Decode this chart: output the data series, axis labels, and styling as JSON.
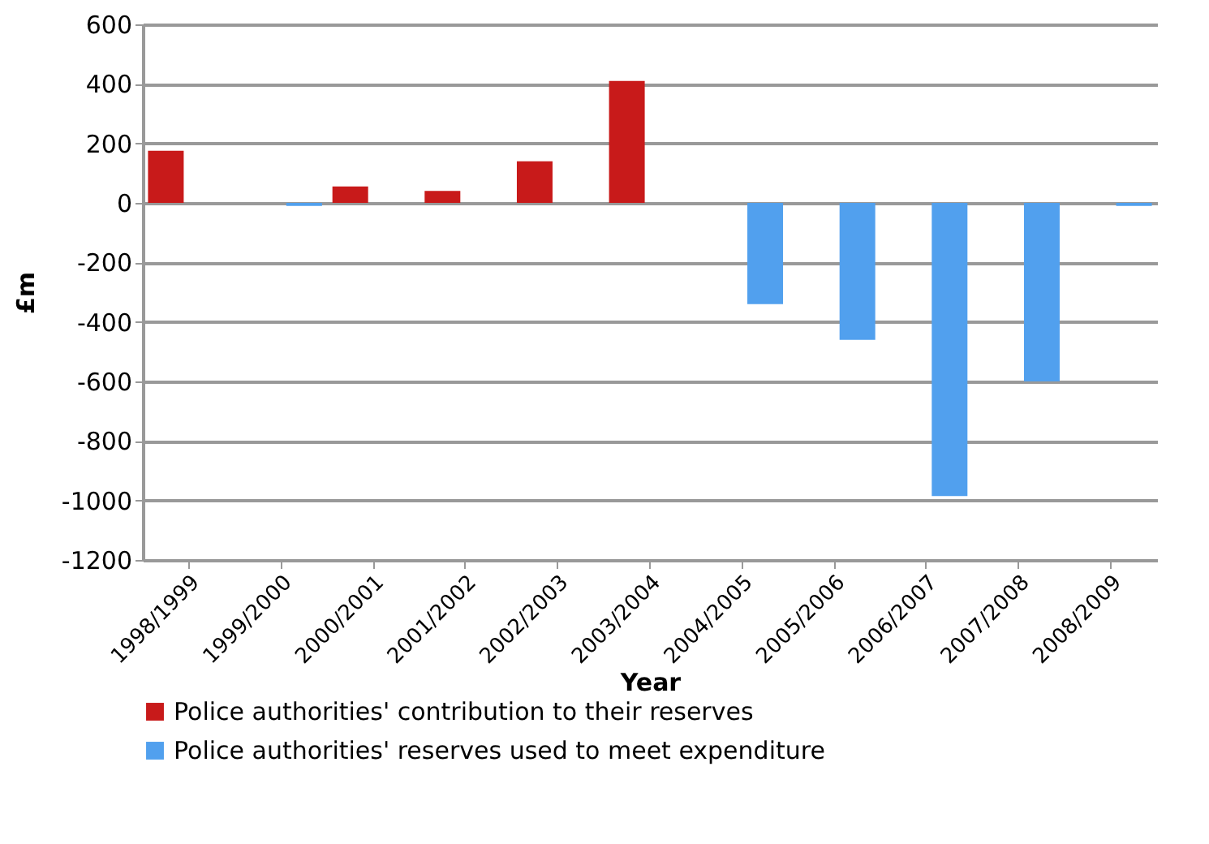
{
  "chart_data": {
    "type": "bar",
    "xlabel": "Year",
    "ylabel": "£m",
    "categories": [
      "1998/1999",
      "1999/2000",
      "2000/2001",
      "2001/2002",
      "2002/2003",
      "2003/2004",
      "2004/2005",
      "2005/2006",
      "2006/2007",
      "2007/2008",
      "2008/2009"
    ],
    "series": [
      {
        "name": "Police authorities' contribution to their reserves",
        "color": "#c81a1a",
        "values": [
          175,
          null,
          55,
          40,
          140,
          410,
          null,
          null,
          null,
          null,
          null
        ]
      },
      {
        "name": "Police authorities' reserves used to meet expenditure",
        "color": "#51a0ee",
        "values": [
          null,
          -10,
          null,
          null,
          null,
          null,
          -340,
          -460,
          -985,
          -600,
          -10
        ]
      }
    ],
    "ylim": [
      -1200,
      600
    ],
    "yticks": [
      -1200,
      -1000,
      -800,
      -600,
      -400,
      -200,
      0,
      200,
      400,
      600
    ],
    "grid": "y",
    "legend": "bottom"
  }
}
